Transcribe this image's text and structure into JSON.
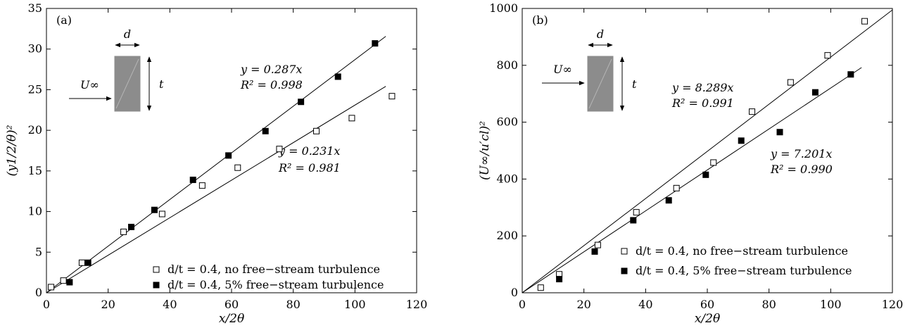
{
  "chart_data": [
    {
      "panel_label": "(a)",
      "type": "scatter",
      "xlabel": "x/2θ",
      "ylabel": "(y1/2/θ)²",
      "xlim": [
        0,
        120
      ],
      "ylim": [
        0,
        35
      ],
      "xticks": [
        "0",
        "20",
        "40",
        "60",
        "80",
        "100",
        "120"
      ],
      "yticks": [
        "0",
        "5",
        "10",
        "15",
        "20",
        "25",
        "30",
        "35"
      ],
      "grid": false,
      "legend_position": "bottom-right",
      "inset": {
        "velocity_label": "U∞",
        "width_label": "d",
        "thickness_label": "t"
      },
      "series": [
        {
          "name": "d/t = 0.4, no free−stream turbulence",
          "marker": "open-square",
          "x": [
            1.5,
            5.5,
            11.5,
            25,
            37.5,
            50.5,
            62,
            75.5,
            87.5,
            99,
            112
          ],
          "y": [
            0.7,
            1.5,
            3.7,
            7.5,
            9.7,
            13.2,
            15.4,
            17.7,
            19.9,
            21.5,
            24.2
          ]
        },
        {
          "name": "d/t = 0.4, 5% free−stream turbulence",
          "marker": "filled-square",
          "x": [
            7.5,
            13.5,
            27.5,
            35,
            47.5,
            59,
            71,
            82.5,
            94.5,
            106.5
          ],
          "y": [
            1.3,
            3.7,
            8.1,
            10.2,
            13.9,
            16.9,
            19.9,
            23.5,
            26.6,
            30.7
          ]
        }
      ],
      "fits": [
        {
          "equation": "y = 0.287x",
          "r2": "R² = 0.998",
          "slope": 0.287,
          "x_range": [
            0,
            110
          ]
        },
        {
          "equation": "y = 0.231x",
          "r2": "R² = 0.981",
          "slope": 0.231,
          "x_range": [
            0,
            110
          ]
        }
      ]
    },
    {
      "panel_label": "(b)",
      "type": "scatter",
      "xlabel": "x/2θ",
      "ylabel": "(U∞/u′cl)²",
      "xlim": [
        0,
        120
      ],
      "ylim": [
        0,
        1000
      ],
      "xticks": [
        "0",
        "20",
        "40",
        "60",
        "80",
        "100",
        "120"
      ],
      "yticks": [
        "0",
        "200",
        "400",
        "600",
        "800",
        "1000"
      ],
      "grid": false,
      "legend_position": "bottom-right",
      "inset": {
        "velocity_label": "U∞",
        "width_label": "d",
        "thickness_label": "t"
      },
      "series": [
        {
          "name": "d/t = 0.4, no free−stream turbulence",
          "marker": "open-square",
          "x": [
            6,
            12,
            24.5,
            37,
            50,
            62,
            74.5,
            87,
            99,
            111
          ],
          "y": [
            18,
            65,
            168,
            283,
            368,
            458,
            637,
            740,
            835,
            955
          ]
        },
        {
          "name": "d/t = 0.4, 5% free−stream turbulence",
          "marker": "filled-square",
          "x": [
            12,
            23.5,
            36,
            47.5,
            59.5,
            71,
            83.5,
            95,
            106.5
          ],
          "y": [
            48,
            145,
            255,
            325,
            415,
            535,
            565,
            705,
            768
          ]
        }
      ],
      "fits": [
        {
          "equation": "y = 8.289x",
          "r2": "R² = 0.991",
          "slope": 8.289,
          "x_range": [
            0,
            120
          ]
        },
        {
          "equation": "y = 7.201x",
          "r2": "R² = 0.990",
          "slope": 7.201,
          "x_range": [
            0,
            110
          ]
        }
      ]
    }
  ]
}
